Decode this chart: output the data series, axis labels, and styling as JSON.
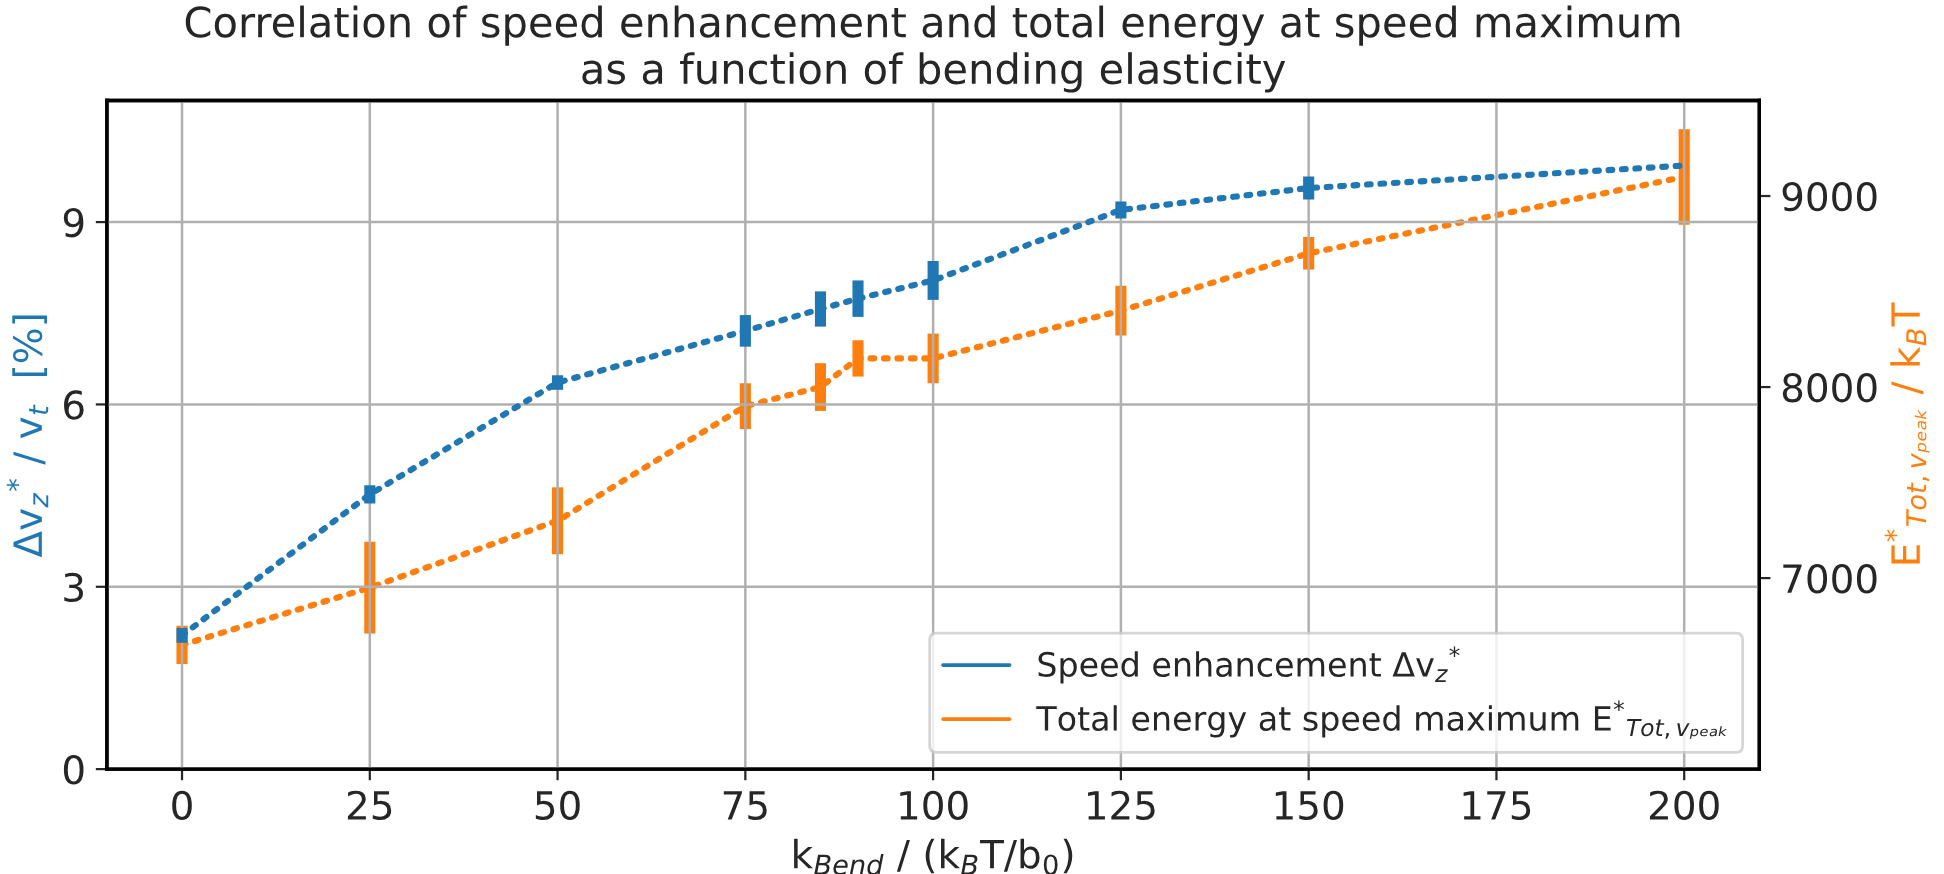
{
  "chart_data": {
    "type": "line",
    "title": "Correlation of speed enhancement and total energy at speed maximum\nas a function of bending elasticity",
    "xlabel": "k$_{Bend}$ / (k$_{B}$T/b$_{0}$)",
    "ylabel": "Δv$_{z}$$^{*}$ / v$_{t}$  [%]",
    "y2label": "E$^{*}$$_{Tot,vₚₑₐₖ}$ / k$_{B}$T",
    "x": [
      0,
      25,
      50,
      75,
      85,
      90,
      100,
      125,
      150,
      200
    ],
    "series": [
      {
        "name": "Speed enhancement Δv$_{z}$$^{*}$",
        "color": "#1f77b4",
        "values": [
          2.2,
          4.52,
          6.36,
          7.21,
          7.57,
          7.74,
          8.04,
          9.2,
          9.56,
          9.93
        ],
        "errors": [
          0.12,
          0.15,
          0.12,
          0.26,
          0.29,
          0.3,
          0.32,
          0.14,
          0.19,
          null
        ]
      },
      {
        "name": "Total energy at speed maximum E$^{*}$$_{Tot,vₚₑₐₖ}$",
        "color": "#ff7f0e",
        "axis": "y2",
        "values": [
          6650,
          6950,
          7300,
          7900,
          8000,
          8150,
          8150,
          8400,
          8700,
          9100
        ],
        "errors": [
          100,
          240,
          175,
          120,
          125,
          95,
          130,
          130,
          85,
          250
        ]
      }
    ],
    "xlim": [
      -10,
      210
    ],
    "xticks": [
      0,
      25,
      50,
      75,
      100,
      125,
      150,
      175,
      200
    ],
    "ylim": [
      0,
      11
    ],
    "yticks": [
      0,
      3,
      6,
      9
    ],
    "y2lim": [
      6000,
      9500
    ],
    "y2ticks": [
      7000,
      8000,
      9000
    ],
    "grid": true,
    "legend": "lower right",
    "line_style": "dotted",
    "marker": "none"
  }
}
